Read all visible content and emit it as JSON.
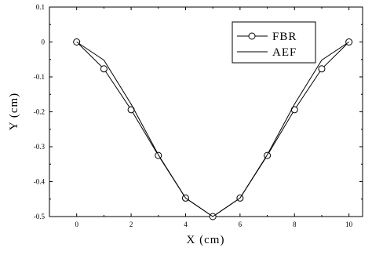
{
  "chart_data": {
    "type": "line",
    "xlabel": "X (cm)",
    "ylabel": "Y (cm)",
    "xlim": [
      -1,
      10.5
    ],
    "ylim": [
      -0.5,
      0.1
    ],
    "x_ticks": [
      "0",
      "2",
      "4",
      "6",
      "8",
      "10"
    ],
    "x_tick_values": [
      0,
      2,
      4,
      6,
      8,
      10
    ],
    "y_ticks": [
      "0.1",
      "0",
      "-0.1",
      "-0.2",
      "-0.3",
      "-0.4",
      "-0.5"
    ],
    "y_tick_values": [
      0.1,
      0,
      -0.1,
      -0.2,
      -0.3,
      -0.4,
      -0.5
    ],
    "grid": false,
    "legend_position": "top-right",
    "series": [
      {
        "name": "FBR",
        "marker": "circle",
        "x": [
          0,
          1,
          2,
          3,
          4,
          5,
          6,
          7,
          8,
          9,
          10
        ],
        "values": [
          0,
          -0.077,
          -0.194,
          -0.325,
          -0.447,
          -0.5,
          -0.447,
          -0.325,
          -0.194,
          -0.077,
          0
        ]
      },
      {
        "name": "AEF",
        "marker": "none",
        "x": [
          0,
          1,
          2,
          3,
          4,
          5,
          6,
          7,
          8,
          9,
          10
        ],
        "values": [
          0,
          -0.052,
          -0.178,
          -0.323,
          -0.447,
          -0.5,
          -0.447,
          -0.323,
          -0.178,
          -0.052,
          0
        ]
      }
    ]
  }
}
